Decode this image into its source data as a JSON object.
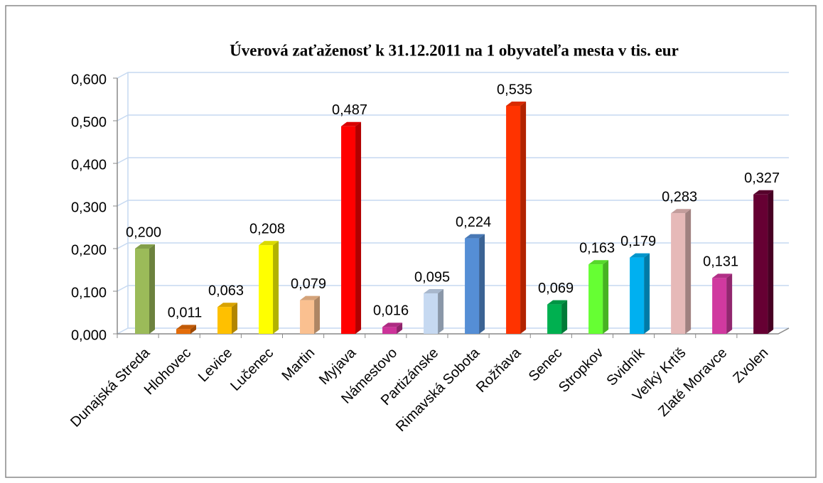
{
  "chart_data": {
    "type": "bar3d",
    "title": "Úverová zaťaženosť k 31.12.2011 na 1 obyvateľa mesta v tis. eur",
    "categories": [
      "Dunajská Streda",
      "Hlohovec",
      "Levice",
      "Lučenec",
      "Martin",
      "Myjava",
      "Námestovo",
      "Partizánske",
      "Rimavská Sobota",
      "Rožňava",
      "Senec",
      "Stropkov",
      "Svidník",
      "Veľký Krtíš",
      "Zlaté Moravce",
      "Zvolen"
    ],
    "values": [
      0.2,
      0.011,
      0.063,
      0.208,
      0.079,
      0.487,
      0.016,
      0.095,
      0.224,
      0.535,
      0.069,
      0.163,
      0.179,
      0.283,
      0.131,
      0.327
    ],
    "value_labels": [
      "0,200",
      "0,011",
      "0,063",
      "0,208",
      "0,079",
      "0,487",
      "0,016",
      "0,095",
      "0,224",
      "0,535",
      "0,069",
      "0,163",
      "0,179",
      "0,283",
      "0,131",
      "0,327"
    ],
    "colors": [
      "#9bbb59",
      "#e46c0a",
      "#ffc000",
      "#ffff00",
      "#fac090",
      "#ff0000",
      "#cc3399",
      "#c6d9f1",
      "#558ed5",
      "#ff3300",
      "#00b050",
      "#66ff33",
      "#00b0f0",
      "#e6b9b8",
      "#d0399f",
      "#660033"
    ],
    "ylim": [
      0,
      0.6
    ],
    "yticks": [
      {
        "value": 0,
        "label": "0,000"
      },
      {
        "value": 0.1,
        "label": "0,100"
      },
      {
        "value": 0.2,
        "label": "0,200"
      },
      {
        "value": 0.3,
        "label": "0,300"
      },
      {
        "value": 0.4,
        "label": "0,400"
      },
      {
        "value": 0.5,
        "label": "0,500"
      },
      {
        "value": 0.6,
        "label": "0,600"
      }
    ],
    "grid": true
  }
}
